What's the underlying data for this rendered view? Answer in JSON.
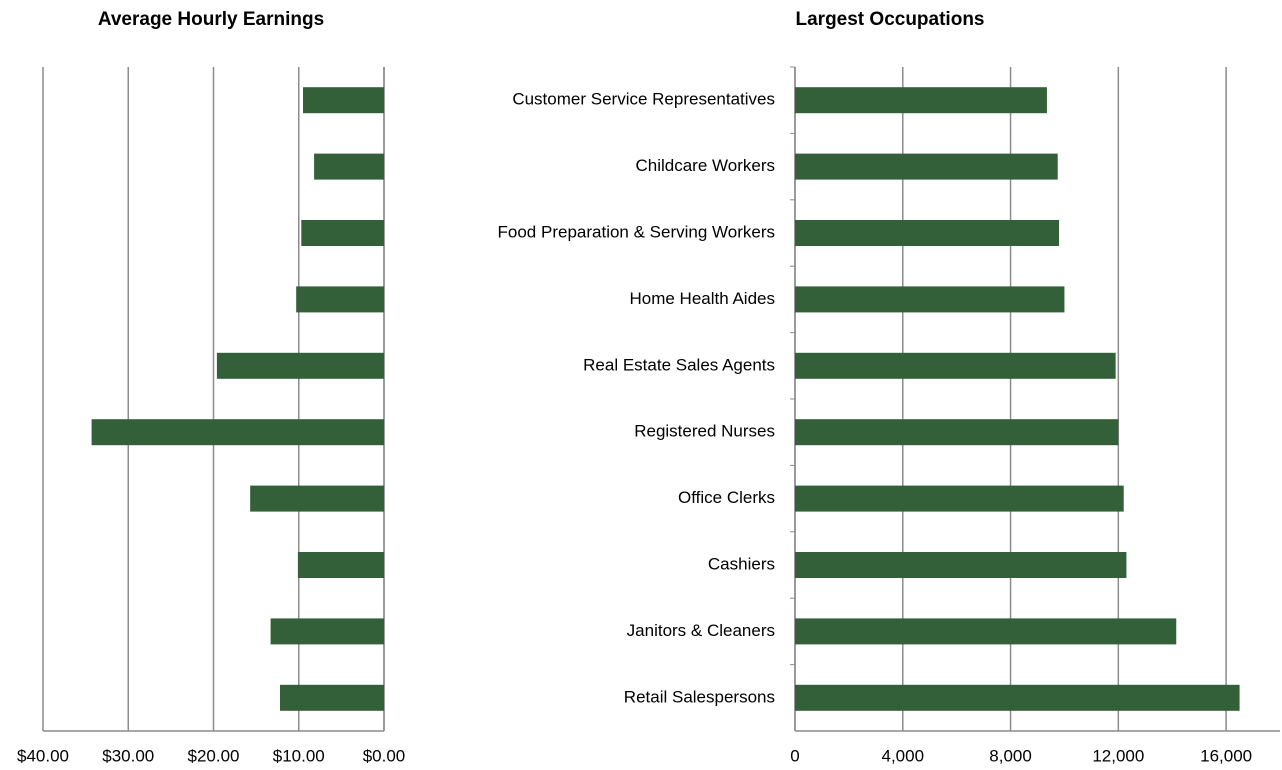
{
  "chart_data": [
    {
      "type": "bar",
      "orientation": "horizontal",
      "title": "Average Hourly Earnings",
      "categories": [
        null,
        null,
        null,
        null,
        null,
        null,
        null,
        null,
        null,
        null
      ],
      "values": [
        9.5,
        8.2,
        9.7,
        10.3,
        19.6,
        34.3,
        15.7,
        10.1,
        13.3,
        12.2
      ],
      "color": "#336039",
      "xlim": [
        0,
        40
      ],
      "x_reversed": true,
      "xticks": [
        {
          "value": 40,
          "label": "$40.00"
        },
        {
          "value": 30,
          "label": "$30.00"
        },
        {
          "value": 20,
          "label": "$20.00"
        },
        {
          "value": 10,
          "label": "$10.00"
        },
        {
          "value": 0,
          "label": "$0.00"
        }
      ],
      "grid": true
    },
    {
      "type": "bar",
      "orientation": "horizontal",
      "title": "Largest Occupations",
      "categories": [
        "Customer Service Representatives",
        "Childcare Workers",
        "Food Preparation & Serving Workers",
        "Home Health Aides",
        "Real Estate Sales Agents",
        "Registered Nurses",
        "Office Clerks",
        "Cashiers",
        "Janitors & Cleaners",
        "Retail Salespersons"
      ],
      "values": [
        9350,
        9750,
        9800,
        10000,
        11900,
        12000,
        12200,
        12300,
        14150,
        16500
      ],
      "color": "#336039",
      "xlim": [
        0,
        18000
      ],
      "xticks": [
        0,
        {
          "value": 4000,
          "label": "4,000"
        },
        {
          "value": 8000,
          "label": "8,000"
        },
        {
          "value": 12000,
          "label": "12,000"
        },
        {
          "value": 16000,
          "label": "16,000"
        }
      ],
      "grid": true
    }
  ]
}
